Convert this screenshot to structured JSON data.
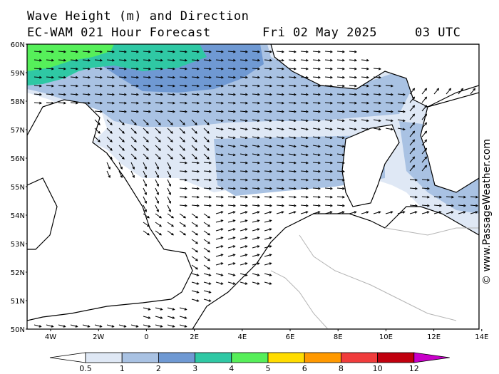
{
  "header": {
    "line1": "Wave Height (m) and Direction",
    "line2": "EC-WAM 021 Hour Forecast",
    "date": "Fri 02 May 2025",
    "time": "03 UTC"
  },
  "credit": "© www.PassageWeather.com",
  "map": {
    "lat_labels": [
      "60N",
      "59N",
      "58N",
      "57N",
      "56N",
      "55N",
      "54N",
      "53N",
      "52N",
      "51N",
      "50N"
    ],
    "lon_labels": [
      "4W",
      "2W",
      "0",
      "2E",
      "4E",
      "6E",
      "8E",
      "10E",
      "12E",
      "14E"
    ],
    "colors": {
      "band_0_5": "#dfe8f5",
      "band_1": "#a9c2e3",
      "band_2": "#6f99d3",
      "band_3": "#2fc8a4",
      "band_4": "#56ef5a",
      "land_border": "#000000"
    }
  },
  "colorbar": {
    "labels": [
      "0.5",
      "1",
      "2",
      "3",
      "4",
      "5",
      "6",
      "8",
      "10",
      "12"
    ],
    "colors": [
      "#ffffff",
      "#dfe8f5",
      "#a9c2e3",
      "#6f99d3",
      "#2fc8a4",
      "#56ef5a",
      "#ffdc00",
      "#ff9900",
      "#f03c3c",
      "#c0000e",
      "#c800c8"
    ]
  }
}
